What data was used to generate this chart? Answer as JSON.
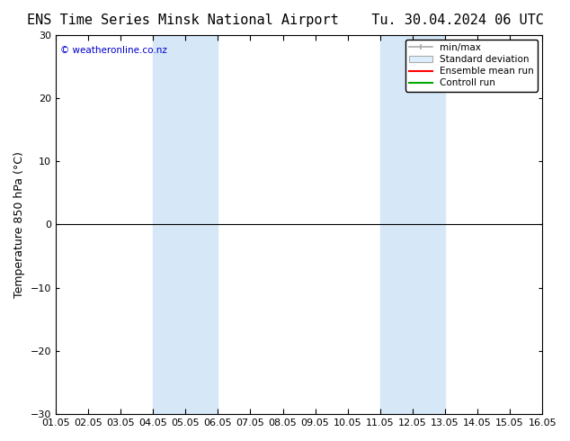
{
  "title_left": "ENS Time Series Minsk National Airport",
  "title_right": "Tu. 30.04.2024 06 UTC",
  "ylabel": "Temperature 850 hPa (°C)",
  "ylim": [
    -30,
    30
  ],
  "yticks": [
    -30,
    -20,
    -10,
    0,
    10,
    20,
    30
  ],
  "xlim_start": 0,
  "xlim_end": 15,
  "xtick_labels": [
    "01.05",
    "02.05",
    "03.05",
    "04.05",
    "05.05",
    "06.05",
    "07.05",
    "08.05",
    "09.05",
    "10.05",
    "11.05",
    "12.05",
    "13.05",
    "14.05",
    "15.05",
    "16.05"
  ],
  "shaded_bands": [
    {
      "x_start": 3,
      "x_end": 5,
      "color": "#d6e8f7"
    },
    {
      "x_start": 10,
      "x_end": 12,
      "color": "#d6e8f7"
    }
  ],
  "hline_y": 0,
  "hline_color": "#000000",
  "legend_labels": [
    "min/max",
    "Standard deviation",
    "Ensemble mean run",
    "Controll run"
  ],
  "legend_colors": [
    "#aaaaaa",
    "#cccccc",
    "#ff0000",
    "#00aa00"
  ],
  "watermark": "© weatheronline.co.nz",
  "watermark_color": "#0000cc",
  "background_color": "#ffffff",
  "plot_bg_color": "#ffffff",
  "grid_color": "#cccccc",
  "title_fontsize": 11,
  "tick_fontsize": 8,
  "ylabel_fontsize": 9
}
